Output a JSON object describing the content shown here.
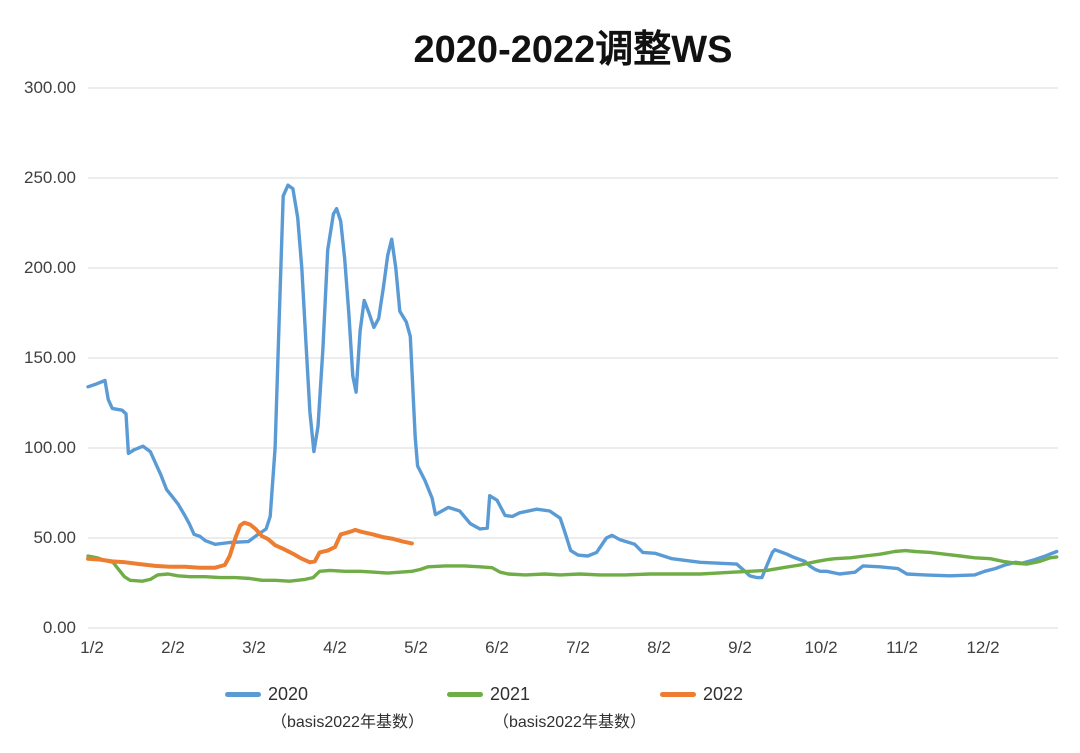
{
  "chart_data": {
    "type": "line",
    "title": "2020-2022调整WS",
    "xlabel": "",
    "ylabel": "",
    "ylim": [
      0,
      300
    ],
    "grid": "horizontal",
    "legend_position": "bottom",
    "text_color": "#404040",
    "grid_color": "#d9d9d9",
    "y_axis": {
      "tick_labels": [
        "300.00",
        "250.00",
        "200.00",
        "150.00",
        "100.00",
        "50.00",
        "0.00"
      ],
      "tick_values": [
        300,
        250,
        200,
        150,
        100,
        50,
        0
      ]
    },
    "x_axis": {
      "tick_labels": [
        "1/2",
        "2/2",
        "3/2",
        "4/2",
        "5/2",
        "6/2",
        "7/2",
        "8/2",
        "9/2",
        "10/2",
        "11/2",
        "12/2"
      ],
      "tick_values": [
        1,
        2,
        3,
        4,
        5,
        6,
        7,
        8,
        9,
        10,
        11,
        12
      ],
      "range": [
        0.93,
        12.98
      ]
    },
    "series": [
      {
        "name": "2020",
        "sublabel": "（basis2022年基数）",
        "color": "#5B9BD5",
        "points": [
          [
            0.95,
            134
          ],
          [
            1.05,
            135.5
          ],
          [
            1.16,
            137.5
          ],
          [
            1.2,
            127
          ],
          [
            1.25,
            122
          ],
          [
            1.37,
            121
          ],
          [
            1.42,
            119
          ],
          [
            1.45,
            97
          ],
          [
            1.52,
            99
          ],
          [
            1.63,
            101
          ],
          [
            1.72,
            98
          ],
          [
            1.78,
            92
          ],
          [
            1.85,
            85
          ],
          [
            1.92,
            77
          ],
          [
            1.99,
            73
          ],
          [
            2.06,
            69
          ],
          [
            2.14,
            63
          ],
          [
            2.2,
            58
          ],
          [
            2.26,
            52
          ],
          [
            2.33,
            51
          ],
          [
            2.4,
            48.5
          ],
          [
            2.52,
            46.5
          ],
          [
            2.7,
            47.5
          ],
          [
            2.93,
            48
          ],
          [
            3.05,
            52
          ],
          [
            3.15,
            55
          ],
          [
            3.2,
            62
          ],
          [
            3.26,
            100
          ],
          [
            3.31,
            170
          ],
          [
            3.36,
            240
          ],
          [
            3.42,
            246
          ],
          [
            3.48,
            244
          ],
          [
            3.54,
            228
          ],
          [
            3.59,
            200
          ],
          [
            3.64,
            160
          ],
          [
            3.69,
            120
          ],
          [
            3.74,
            98
          ],
          [
            3.79,
            112
          ],
          [
            3.85,
            155
          ],
          [
            3.91,
            210
          ],
          [
            3.98,
            230
          ],
          [
            4.02,
            233
          ],
          [
            4.07,
            226
          ],
          [
            4.12,
            205
          ],
          [
            4.17,
            175
          ],
          [
            4.22,
            140
          ],
          [
            4.26,
            131
          ],
          [
            4.31,
            165
          ],
          [
            4.36,
            182
          ],
          [
            4.42,
            175
          ],
          [
            4.48,
            167
          ],
          [
            4.54,
            172
          ],
          [
            4.6,
            190
          ],
          [
            4.65,
            207
          ],
          [
            4.7,
            216
          ],
          [
            4.75,
            200
          ],
          [
            4.8,
            176
          ],
          [
            4.88,
            170
          ],
          [
            4.93,
            162
          ],
          [
            4.99,
            106
          ],
          [
            5.02,
            90
          ],
          [
            5.11,
            82
          ],
          [
            5.2,
            72
          ],
          [
            5.24,
            63
          ],
          [
            5.4,
            67
          ],
          [
            5.54,
            65
          ],
          [
            5.67,
            58
          ],
          [
            5.79,
            55
          ],
          [
            5.88,
            55.5
          ],
          [
            5.91,
            73.5
          ],
          [
            6.0,
            71
          ],
          [
            6.1,
            62.5
          ],
          [
            6.19,
            62
          ],
          [
            6.28,
            64
          ],
          [
            6.49,
            66
          ],
          [
            6.65,
            65
          ],
          [
            6.78,
            61
          ],
          [
            6.84,
            53
          ],
          [
            6.91,
            43
          ],
          [
            7.0,
            40.5
          ],
          [
            7.12,
            40
          ],
          [
            7.23,
            42
          ],
          [
            7.35,
            50
          ],
          [
            7.42,
            51.5
          ],
          [
            7.52,
            49
          ],
          [
            7.7,
            46.5
          ],
          [
            7.8,
            42
          ],
          [
            7.95,
            41.5
          ],
          [
            8.16,
            38.5
          ],
          [
            8.51,
            36.5
          ],
          [
            8.96,
            35.5
          ],
          [
            9.06,
            31.5
          ],
          [
            9.12,
            29
          ],
          [
            9.21,
            28
          ],
          [
            9.27,
            28
          ],
          [
            9.33,
            34.5
          ],
          [
            9.4,
            42
          ],
          [
            9.43,
            43.5
          ],
          [
            9.49,
            42.5
          ],
          [
            9.58,
            41
          ],
          [
            9.65,
            39.5
          ],
          [
            9.74,
            38
          ],
          [
            9.8,
            37
          ],
          [
            9.86,
            34.5
          ],
          [
            9.93,
            32.5
          ],
          [
            9.99,
            31.5
          ],
          [
            10.07,
            31.5
          ],
          [
            10.23,
            30
          ],
          [
            10.42,
            31
          ],
          [
            10.52,
            34.5
          ],
          [
            10.73,
            34
          ],
          [
            10.95,
            33
          ],
          [
            11.06,
            30
          ],
          [
            11.28,
            29.5
          ],
          [
            11.59,
            29
          ],
          [
            11.9,
            29.5
          ],
          [
            12.02,
            31.5
          ],
          [
            12.15,
            33
          ],
          [
            12.27,
            35
          ],
          [
            12.4,
            36.5
          ],
          [
            12.48,
            36
          ],
          [
            12.64,
            38
          ],
          [
            12.77,
            40
          ],
          [
            12.91,
            42.5
          ]
        ]
      },
      {
        "name": "2021",
        "sublabel": "（basis2022年基数）",
        "color": "#70AD47",
        "points": [
          [
            0.95,
            40
          ],
          [
            1.06,
            39
          ],
          [
            1.16,
            37.5
          ],
          [
            1.26,
            36.5
          ],
          [
            1.32,
            33
          ],
          [
            1.4,
            28.5
          ],
          [
            1.47,
            26.5
          ],
          [
            1.62,
            26
          ],
          [
            1.72,
            27
          ],
          [
            1.81,
            29.5
          ],
          [
            1.94,
            30
          ],
          [
            2.06,
            29
          ],
          [
            2.21,
            28.5
          ],
          [
            2.4,
            28.5
          ],
          [
            2.58,
            28
          ],
          [
            2.77,
            28
          ],
          [
            2.95,
            27.5
          ],
          [
            3.1,
            26.5
          ],
          [
            3.26,
            26.5
          ],
          [
            3.44,
            26
          ],
          [
            3.63,
            27
          ],
          [
            3.73,
            28
          ],
          [
            3.81,
            31.5
          ],
          [
            3.94,
            32
          ],
          [
            4.12,
            31.5
          ],
          [
            4.31,
            31.5
          ],
          [
            4.49,
            31
          ],
          [
            4.65,
            30.5
          ],
          [
            4.8,
            31
          ],
          [
            4.95,
            31.5
          ],
          [
            5.05,
            32.5
          ],
          [
            5.15,
            34
          ],
          [
            5.36,
            34.5
          ],
          [
            5.6,
            34.5
          ],
          [
            5.79,
            34
          ],
          [
            5.94,
            33.5
          ],
          [
            6.04,
            31
          ],
          [
            6.14,
            30
          ],
          [
            6.35,
            29.5
          ],
          [
            6.59,
            30
          ],
          [
            6.78,
            29.5
          ],
          [
            7.02,
            30
          ],
          [
            7.27,
            29.5
          ],
          [
            7.58,
            29.5
          ],
          [
            7.89,
            30
          ],
          [
            8.2,
            30
          ],
          [
            8.51,
            30
          ],
          [
            8.72,
            30.5
          ],
          [
            8.91,
            31
          ],
          [
            9.12,
            31.5
          ],
          [
            9.33,
            32
          ],
          [
            9.53,
            33.5
          ],
          [
            9.74,
            35
          ],
          [
            9.95,
            37
          ],
          [
            10.08,
            38
          ],
          [
            10.17,
            38.5
          ],
          [
            10.36,
            39
          ],
          [
            10.54,
            40
          ],
          [
            10.73,
            41
          ],
          [
            10.91,
            42.5
          ],
          [
            11.04,
            43
          ],
          [
            11.16,
            42.5
          ],
          [
            11.35,
            42
          ],
          [
            11.53,
            41
          ],
          [
            11.72,
            40
          ],
          [
            11.9,
            39
          ],
          [
            12.09,
            38.5
          ],
          [
            12.25,
            37
          ],
          [
            12.4,
            36
          ],
          [
            12.54,
            35.5
          ],
          [
            12.7,
            37
          ],
          [
            12.83,
            39
          ],
          [
            12.91,
            39.5
          ]
        ]
      },
      {
        "name": "2022",
        "sublabel": "",
        "color": "#ED7D31",
        "points": [
          [
            0.95,
            38.5
          ],
          [
            1.1,
            38
          ],
          [
            1.25,
            37
          ],
          [
            1.41,
            36.5
          ],
          [
            1.59,
            35.5
          ],
          [
            1.78,
            34.5
          ],
          [
            1.96,
            34
          ],
          [
            2.15,
            34
          ],
          [
            2.33,
            33.5
          ],
          [
            2.52,
            33.5
          ],
          [
            2.64,
            35
          ],
          [
            2.7,
            40
          ],
          [
            2.77,
            50
          ],
          [
            2.83,
            57
          ],
          [
            2.88,
            58.5
          ],
          [
            2.95,
            57.5
          ],
          [
            3.02,
            55
          ],
          [
            3.1,
            51
          ],
          [
            3.17,
            49.5
          ],
          [
            3.26,
            46
          ],
          [
            3.36,
            44
          ],
          [
            3.47,
            41.5
          ],
          [
            3.59,
            38.5
          ],
          [
            3.69,
            36.5
          ],
          [
            3.75,
            37
          ],
          [
            3.81,
            42
          ],
          [
            3.91,
            43
          ],
          [
            4.0,
            45
          ],
          [
            4.07,
            52
          ],
          [
            4.19,
            53.5
          ],
          [
            4.25,
            54.5
          ],
          [
            4.32,
            53.5
          ],
          [
            4.47,
            52
          ],
          [
            4.59,
            50.5
          ],
          [
            4.72,
            49.5
          ],
          [
            4.84,
            48
          ],
          [
            4.95,
            47
          ]
        ]
      }
    ]
  }
}
